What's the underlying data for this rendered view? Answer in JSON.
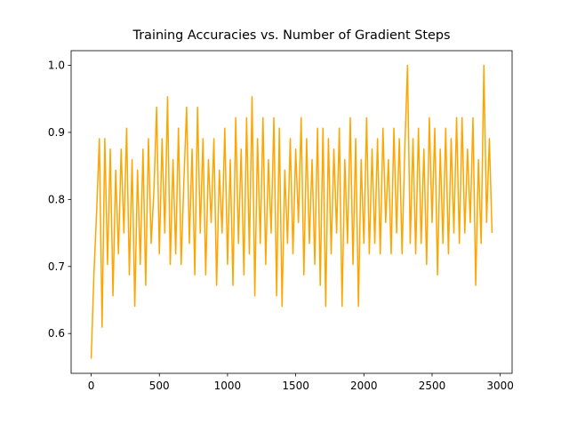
{
  "chart_data": {
    "type": "line",
    "title": "Training Accuracies vs. Number of Gradient Steps",
    "color": "#ffa500",
    "grid": false,
    "xlim": [
      -147,
      3087
    ],
    "ylim": [
      0.5406,
      1.0219
    ],
    "xticks": [
      0,
      500,
      1000,
      1500,
      2000,
      2500,
      3000
    ],
    "yticks": [
      0.6,
      0.7,
      0.8,
      0.9,
      {
        "value": 1,
        "label": "1.0"
      }
    ],
    "x": [
      0,
      20,
      40,
      60,
      80,
      100,
      120,
      140,
      160,
      180,
      200,
      220,
      240,
      260,
      280,
      300,
      320,
      340,
      360,
      380,
      400,
      420,
      440,
      460,
      480,
      500,
      520,
      540,
      560,
      580,
      600,
      620,
      640,
      660,
      680,
      700,
      720,
      740,
      760,
      780,
      800,
      820,
      840,
      860,
      880,
      900,
      920,
      940,
      960,
      980,
      1000,
      1020,
      1040,
      1060,
      1080,
      1100,
      1120,
      1140,
      1160,
      1180,
      1200,
      1220,
      1240,
      1260,
      1280,
      1300,
      1320,
      1340,
      1360,
      1380,
      1400,
      1420,
      1440,
      1460,
      1480,
      1500,
      1520,
      1540,
      1560,
      1580,
      1600,
      1620,
      1640,
      1660,
      1680,
      1700,
      1720,
      1740,
      1760,
      1780,
      1800,
      1820,
      1840,
      1860,
      1880,
      1900,
      1920,
      1940,
      1960,
      1980,
      2000,
      2020,
      2040,
      2060,
      2080,
      2100,
      2120,
      2140,
      2160,
      2180,
      2200,
      2220,
      2240,
      2260,
      2280,
      2300,
      2320,
      2340,
      2360,
      2380,
      2400,
      2420,
      2440,
      2460,
      2480,
      2500,
      2520,
      2540,
      2560,
      2580,
      2600,
      2620,
      2640,
      2660,
      2680,
      2700,
      2720,
      2740,
      2760,
      2780,
      2800,
      2820,
      2840,
      2860,
      2880,
      2900,
      2920,
      2940
    ],
    "values": [
      0.5625,
      0.6875,
      0.7813,
      0.8906,
      0.6094,
      0.8906,
      0.7031,
      0.875,
      0.6563,
      0.8438,
      0.7188,
      0.875,
      0.75,
      0.9063,
      0.6875,
      0.8594,
      0.6406,
      0.8438,
      0.7031,
      0.875,
      0.6719,
      0.8906,
      0.7344,
      0.8125,
      0.9375,
      0.7188,
      0.8906,
      0.75,
      0.9531,
      0.7031,
      0.8594,
      0.7188,
      0.9063,
      0.7031,
      0.8281,
      0.9375,
      0.7344,
      0.875,
      0.6875,
      0.9375,
      0.75,
      0.8906,
      0.6875,
      0.8594,
      0.7656,
      0.8906,
      0.6719,
      0.8438,
      0.75,
      0.9063,
      0.7031,
      0.8594,
      0.6719,
      0.9219,
      0.7344,
      0.875,
      0.6875,
      0.9219,
      0.7188,
      0.9531,
      0.6563,
      0.8906,
      0.7344,
      0.9219,
      0.7031,
      0.8594,
      0.75,
      0.9219,
      0.6563,
      0.9063,
      0.6406,
      0.8438,
      0.7344,
      0.8906,
      0.7188,
      0.875,
      0.7656,
      0.9219,
      0.6875,
      0.8906,
      0.7344,
      0.8594,
      0.7031,
      0.9063,
      0.6719,
      0.9063,
      0.6406,
      0.8906,
      0.7188,
      0.875,
      0.75,
      0.9063,
      0.6406,
      0.8594,
      0.7344,
      0.9219,
      0.7031,
      0.8906,
      0.6406,
      0.8594,
      0.7344,
      0.9219,
      0.7188,
      0.875,
      0.7344,
      0.8906,
      0.7188,
      0.9063,
      0.7656,
      0.8594,
      0.7188,
      0.9063,
      0.75,
      0.8906,
      0.7188,
      0.875,
      1.0,
      0.7344,
      0.8906,
      0.7188,
      0.9063,
      0.7344,
      0.875,
      0.7031,
      0.9219,
      0.7656,
      0.9063,
      0.6875,
      0.875,
      0.7344,
      0.9063,
      0.7188,
      0.8906,
      0.75,
      0.9219,
      0.7344,
      0.9219,
      0.75,
      0.875,
      0.7656,
      0.9219,
      0.6719,
      0.8594,
      0.7344,
      1.0,
      0.7656,
      0.8906,
      0.75
    ]
  }
}
